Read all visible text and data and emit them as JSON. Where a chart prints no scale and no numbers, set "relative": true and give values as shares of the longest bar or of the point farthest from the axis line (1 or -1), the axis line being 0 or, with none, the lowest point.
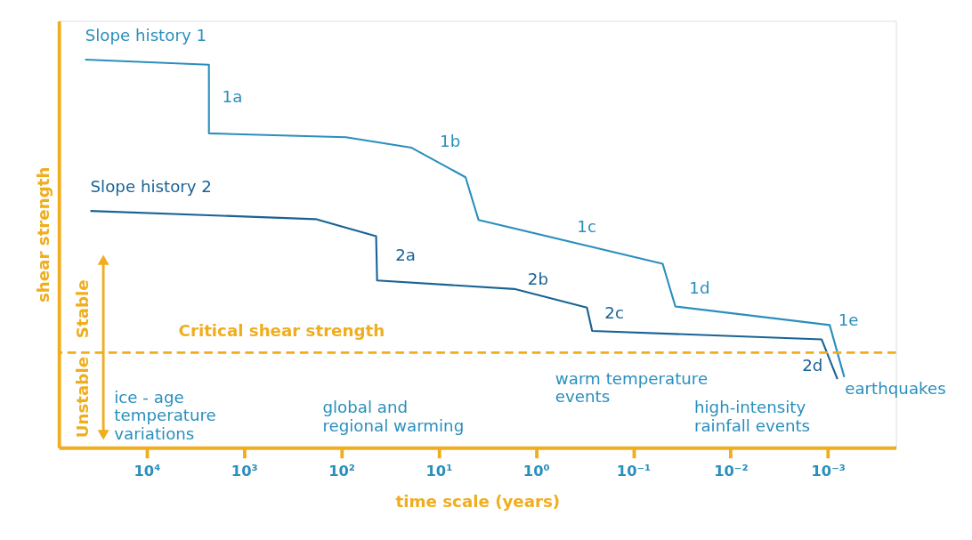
{
  "chart_data": {
    "type": "line",
    "relative": true,
    "xlabel": "time scale (years)",
    "ylabel": "shear strength",
    "log": "x",
    "legend": false,
    "grid": false,
    "marker": "none",
    "line_style": "solid",
    "xlim": [
      80000,
      0.0002
    ],
    "xticks": [
      {
        "value": 10000,
        "label": "10⁴"
      },
      {
        "value": 1000,
        "label": "10³"
      },
      {
        "value": 100,
        "label": "10²"
      },
      {
        "value": 10,
        "label": "10¹"
      },
      {
        "value": 1,
        "label": "10⁰"
      },
      {
        "value": 0.1,
        "label": "10⁻¹"
      },
      {
        "value": 0.01,
        "label": "10⁻²"
      },
      {
        "value": 0.001,
        "label": "10⁻³"
      }
    ],
    "series": [
      {
        "name": "Slope history 1",
        "color": "#2a8fbd",
        "x": [
          43000,
          2300,
          2299,
          90,
          19,
          5.3,
          3.9,
          0.05,
          0.037,
          0.00096,
          0.00068
        ],
        "values": [
          1,
          0.987,
          0.81,
          0.8,
          0.773,
          0.697,
          0.587,
          0.474,
          0.364,
          0.316,
          0.182
        ]
      },
      {
        "name": "Slope history 2",
        "color": "#1a6396",
        "x": [
          38000,
          184,
          44,
          43,
          1.67,
          0.3,
          0.265,
          0.00116,
          0.0008
        ],
        "values": [
          0.61,
          0.589,
          0.545,
          0.431,
          0.409,
          0.361,
          0.301,
          0.279,
          0.177
        ]
      }
    ],
    "ref_lines": [
      {
        "axis": "y",
        "value": 0.245,
        "label": "Critical shear strength",
        "color": "#f0ad1e",
        "line_style": "dashed"
      }
    ],
    "annotations": [
      "1a",
      "1b",
      "1c",
      "1d",
      "1e",
      "2a",
      "2b",
      "2c",
      "2d",
      "ice - age\ntemperature\nvariations",
      "global and\nregional warming",
      "warm temperature\nevents",
      "high-intensity\nrainfall events",
      "earthquakes",
      "Stable",
      "Unstable"
    ]
  }
}
